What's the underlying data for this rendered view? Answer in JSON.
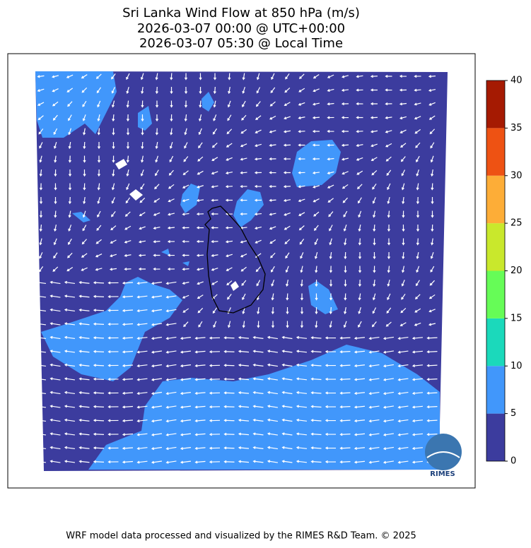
{
  "title": [
    "Sri Lanka Wind Flow at 850 hPa (m/s)",
    "2026-03-07 00:00 @ UTC+00:00",
    "2026-03-07 05:30 @ Local Time"
  ],
  "colorbar": {
    "lim": [
      0,
      40
    ],
    "ticks": [
      0,
      5,
      10,
      15,
      20,
      25,
      30,
      35,
      40
    ],
    "colors": [
      "#3c3c9e",
      "#4197fb",
      "#1bd9bb",
      "#66fc57",
      "#c9e82c",
      "#fdad37",
      "#ee5213",
      "#a51a02"
    ]
  },
  "logo": {
    "label": "RIMES"
  },
  "footer": "WRF model data processed and visualized by the RIMES R&D Team. © 2025"
}
